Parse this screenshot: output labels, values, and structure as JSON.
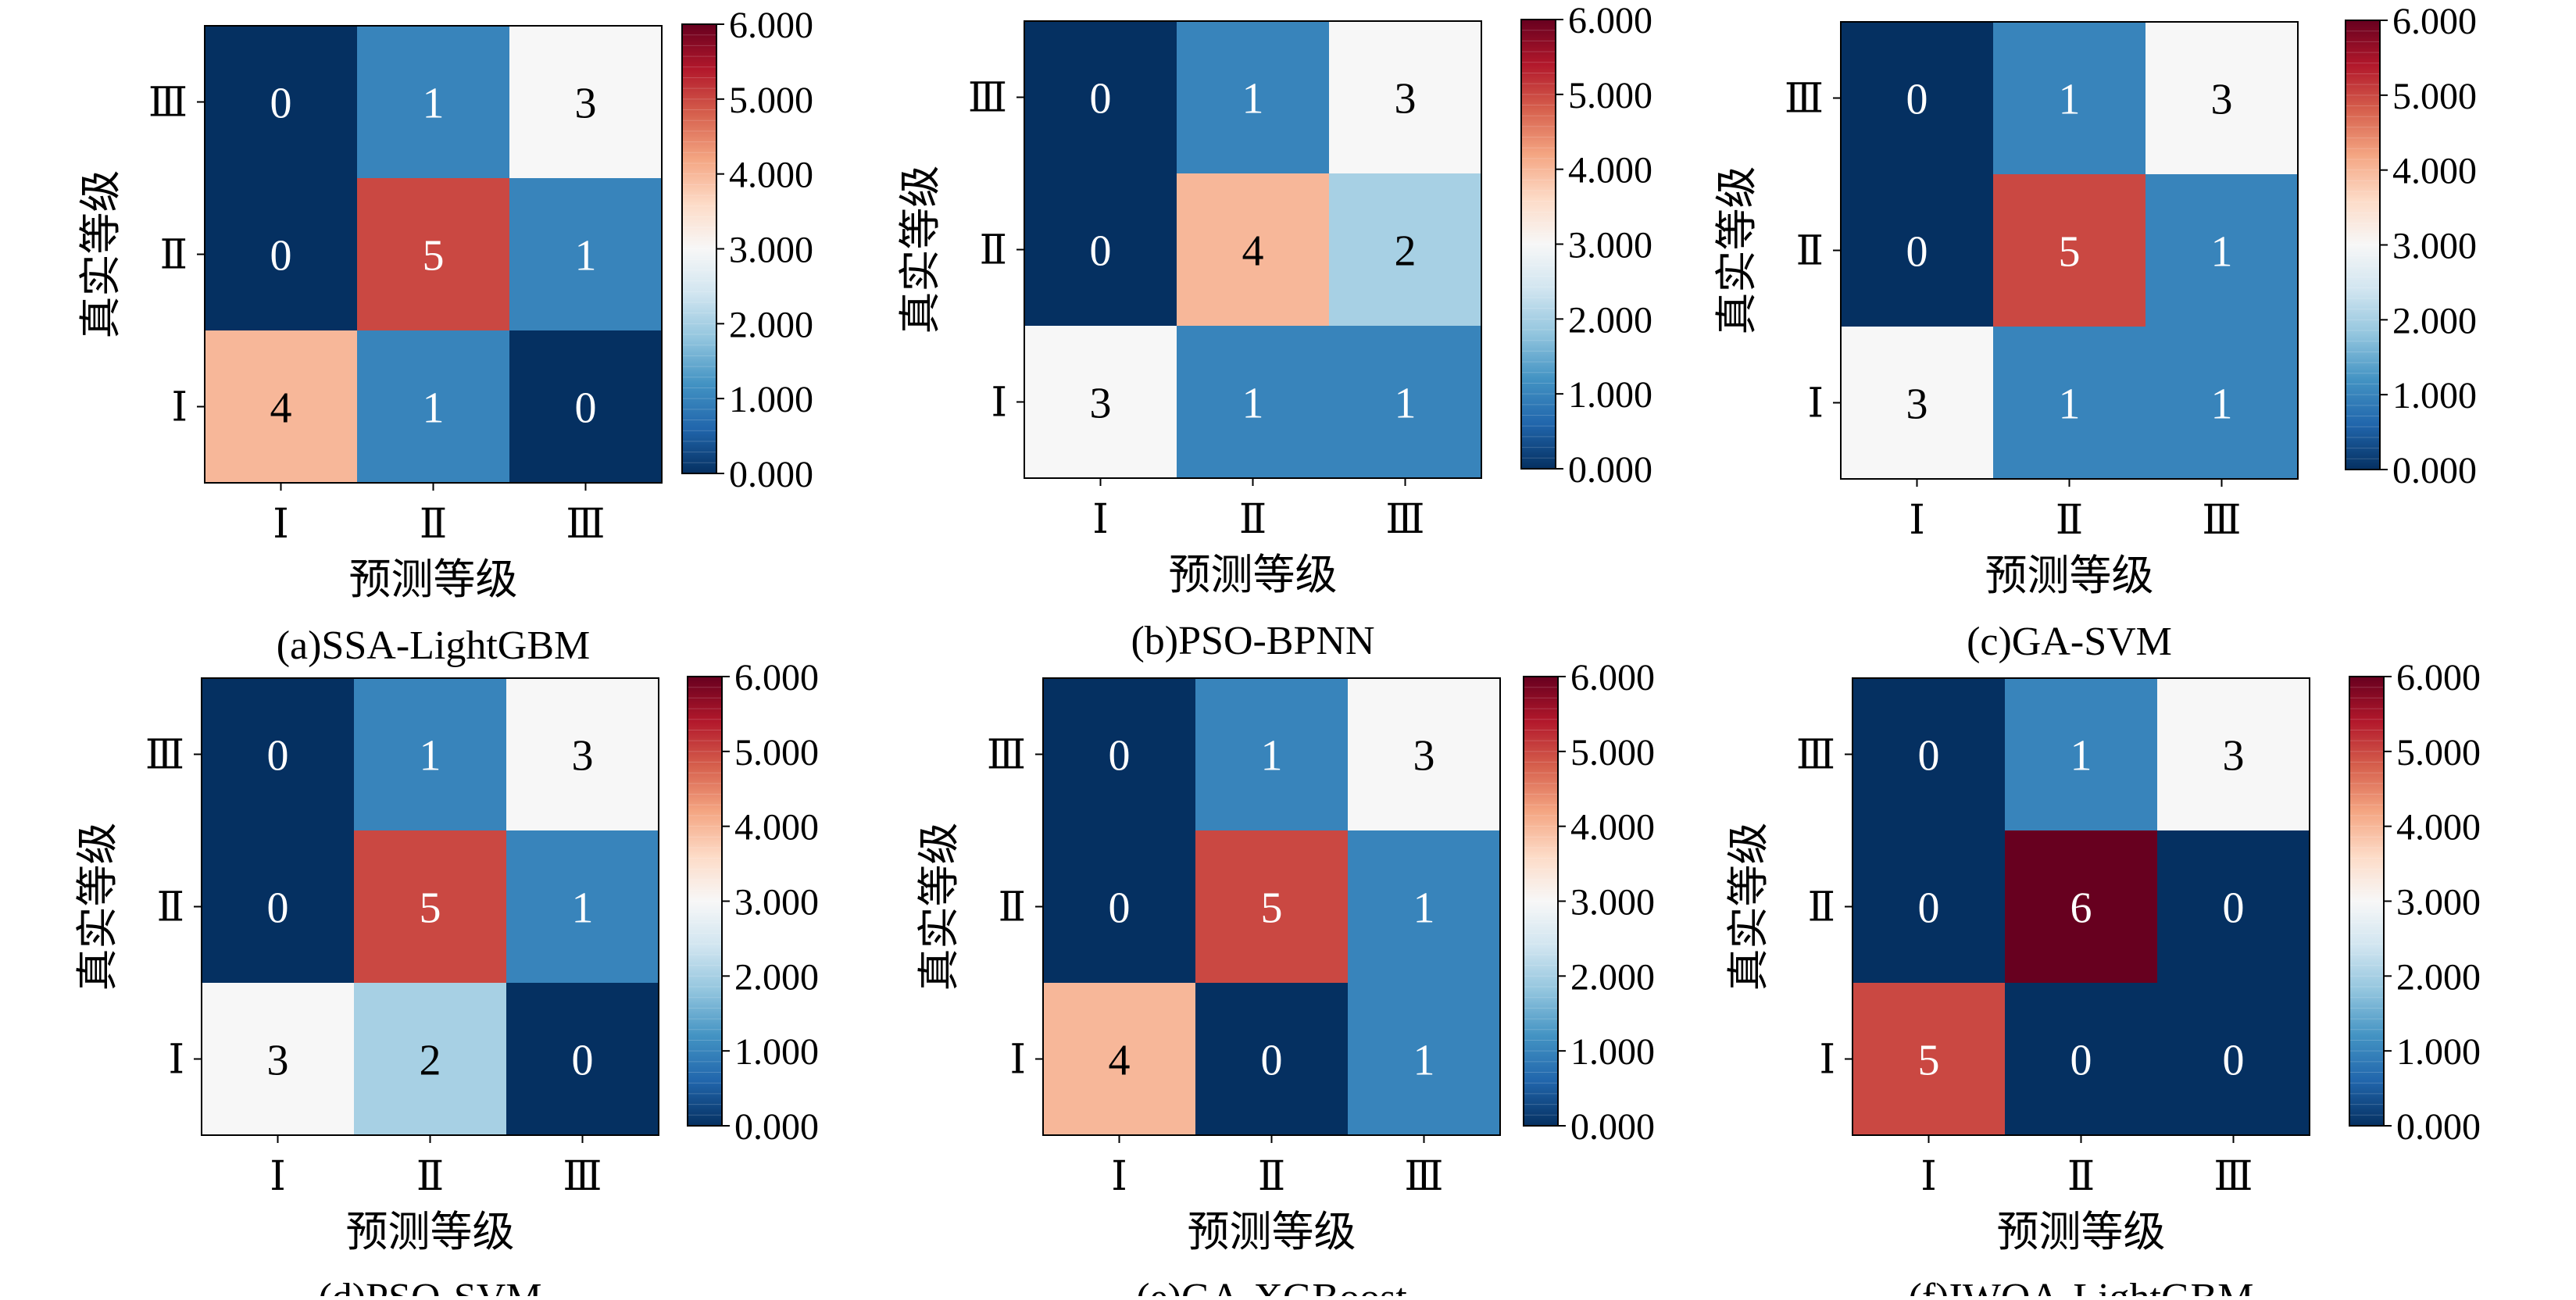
{
  "colorbar": {
    "min": 0,
    "max": 6,
    "ticks": [
      "0.000",
      "1.000",
      "2.000",
      "3.000",
      "4.000",
      "5.000",
      "6.000"
    ],
    "colormap": "RdBu_r",
    "colormap_stops": [
      "#053061",
      "#2166ac",
      "#4393c3",
      "#92c5de",
      "#d1e5f0",
      "#f7f7f7",
      "#fddbc7",
      "#f4a582",
      "#d6604d",
      "#b2182b",
      "#67001f"
    ]
  },
  "chart_data": [
    {
      "type": "heatmap",
      "title": "(a)SSA-LightGBM",
      "xlabel": "预测等级",
      "ylabel": "真实等级",
      "x_categories": [
        "Ⅰ",
        "Ⅱ",
        "Ⅲ"
      ],
      "y_categories": [
        "Ⅲ",
        "Ⅱ",
        "Ⅰ"
      ],
      "values": [
        [
          0,
          1,
          3
        ],
        [
          0,
          5,
          1
        ],
        [
          4,
          1,
          0
        ]
      ],
      "clim": [
        0,
        6
      ]
    },
    {
      "type": "heatmap",
      "title": "(b)PSO-BPNN",
      "xlabel": "预测等级",
      "ylabel": "真实等级",
      "x_categories": [
        "Ⅰ",
        "Ⅱ",
        "Ⅲ"
      ],
      "y_categories": [
        "Ⅲ",
        "Ⅱ",
        "Ⅰ"
      ],
      "values": [
        [
          0,
          1,
          3
        ],
        [
          0,
          4,
          2
        ],
        [
          3,
          1,
          1
        ]
      ],
      "clim": [
        0,
        6
      ]
    },
    {
      "type": "heatmap",
      "title": "(c)GA-SVM",
      "xlabel": "预测等级",
      "ylabel": "真实等级",
      "x_categories": [
        "Ⅰ",
        "Ⅱ",
        "Ⅲ"
      ],
      "y_categories": [
        "Ⅲ",
        "Ⅱ",
        "Ⅰ"
      ],
      "values": [
        [
          0,
          1,
          3
        ],
        [
          0,
          5,
          1
        ],
        [
          3,
          1,
          1
        ]
      ],
      "clim": [
        0,
        6
      ]
    },
    {
      "type": "heatmap",
      "title": "(d)PSO-SVM",
      "xlabel": "预测等级",
      "ylabel": "真实等级",
      "x_categories": [
        "Ⅰ",
        "Ⅱ",
        "Ⅲ"
      ],
      "y_categories": [
        "Ⅲ",
        "Ⅱ",
        "Ⅰ"
      ],
      "values": [
        [
          0,
          1,
          3
        ],
        [
          0,
          5,
          1
        ],
        [
          3,
          2,
          0
        ]
      ],
      "clim": [
        0,
        6
      ]
    },
    {
      "type": "heatmap",
      "title": "(e)GA-XGBoost",
      "xlabel": "预测等级",
      "ylabel": "真实等级",
      "x_categories": [
        "Ⅰ",
        "Ⅱ",
        "Ⅲ"
      ],
      "y_categories": [
        "Ⅲ",
        "Ⅱ",
        "Ⅰ"
      ],
      "values": [
        [
          0,
          1,
          3
        ],
        [
          0,
          5,
          1
        ],
        [
          4,
          0,
          1
        ]
      ],
      "clim": [
        0,
        6
      ]
    },
    {
      "type": "heatmap",
      "title": "(f)IWOA-LightGBM",
      "xlabel": "预测等级",
      "ylabel": "真实等级",
      "x_categories": [
        "Ⅰ",
        "Ⅱ",
        "Ⅲ"
      ],
      "y_categories": [
        "Ⅲ",
        "Ⅱ",
        "Ⅰ"
      ],
      "values": [
        [
          0,
          1,
          3
        ],
        [
          0,
          6,
          0
        ],
        [
          5,
          0,
          0
        ]
      ],
      "clim": [
        0,
        6
      ]
    }
  ]
}
